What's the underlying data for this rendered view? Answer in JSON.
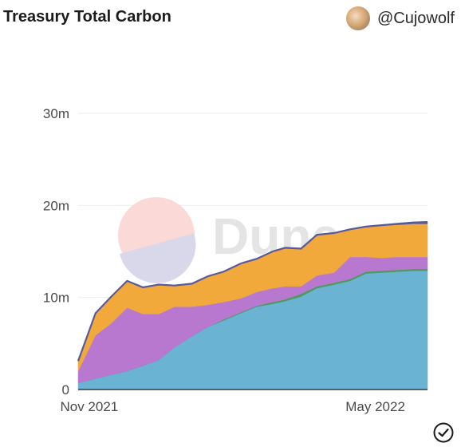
{
  "header": {
    "title": "Treasury Total Carbon",
    "author": "@Cujowolf"
  },
  "watermark": {
    "text": "Dune"
  },
  "icons": {
    "avatar": "avatar",
    "confirm": "check-circle-icon"
  },
  "colors": {
    "series": [
      "#6ab3d3",
      "#4f9a5f",
      "#b878d0",
      "#f2a93b",
      "#555aa0"
    ],
    "grid": "#eeeeee"
  },
  "chart_data": {
    "type": "area",
    "stacked": true,
    "title": "Treasury Total Carbon",
    "xlabel": "",
    "ylabel": "",
    "x_tick_labels": [
      "Nov 2021",
      "May 2022"
    ],
    "y_tick_labels": [
      "0",
      "10m",
      "20m",
      "30m"
    ],
    "ylim": [
      0,
      30000000
    ],
    "grid": true,
    "legend": "none",
    "x": [
      "2021-10-25",
      "2021-11-05",
      "2021-11-15",
      "2021-11-25",
      "2021-12-05",
      "2021-12-15",
      "2021-12-25",
      "2022-01-05",
      "2022-01-15",
      "2022-01-25",
      "2022-02-05",
      "2022-02-15",
      "2022-02-25",
      "2022-03-05",
      "2022-03-15",
      "2022-03-25",
      "2022-04-05",
      "2022-04-15",
      "2022-04-25",
      "2022-05-05",
      "2022-05-15",
      "2022-05-25",
      "2022-06-03"
    ],
    "series": [
      {
        "values": [
          0.7,
          1.2,
          1.6,
          2.0,
          2.6,
          3.2,
          4.6,
          5.8,
          6.8,
          7.5,
          8.3,
          9.0,
          9.3,
          9.6,
          10.1,
          11.0,
          11.4,
          11.8,
          12.6,
          12.7,
          12.8,
          12.9,
          12.9
        ]
      },
      {
        "values": [
          0.0,
          0.0,
          0.0,
          0.0,
          0.0,
          0.0,
          0.0,
          0.0,
          0.0,
          0.1,
          0.1,
          0.1,
          0.2,
          0.2,
          0.3,
          0.2,
          0.2,
          0.2,
          0.2,
          0.2,
          0.2,
          0.2,
          0.2
        ]
      },
      {
        "values": [
          1.3,
          4.7,
          5.6,
          6.9,
          5.6,
          5.0,
          4.4,
          3.2,
          2.4,
          1.9,
          1.5,
          1.5,
          1.5,
          1.4,
          0.8,
          1.2,
          1.1,
          2.4,
          1.6,
          1.4,
          1.4,
          1.3,
          1.3
        ]
      },
      {
        "values": [
          1.1,
          2.4,
          2.9,
          2.9,
          2.9,
          3.2,
          2.3,
          2.5,
          3.1,
          3.3,
          3.8,
          3.6,
          4.0,
          4.2,
          4.1,
          4.4,
          4.3,
          3.0,
          3.3,
          3.5,
          3.5,
          3.6,
          3.6
        ]
      },
      {
        "values": [
          0.0,
          0.0,
          0.0,
          0.0,
          0.0,
          0.0,
          0.0,
          0.0,
          0.0,
          0.0,
          0.0,
          0.0,
          0.0,
          0.0,
          0.0,
          0.0,
          0.0,
          0.0,
          0.0,
          0.05,
          0.1,
          0.15,
          0.2
        ]
      }
    ],
    "values_unit": "millions"
  }
}
